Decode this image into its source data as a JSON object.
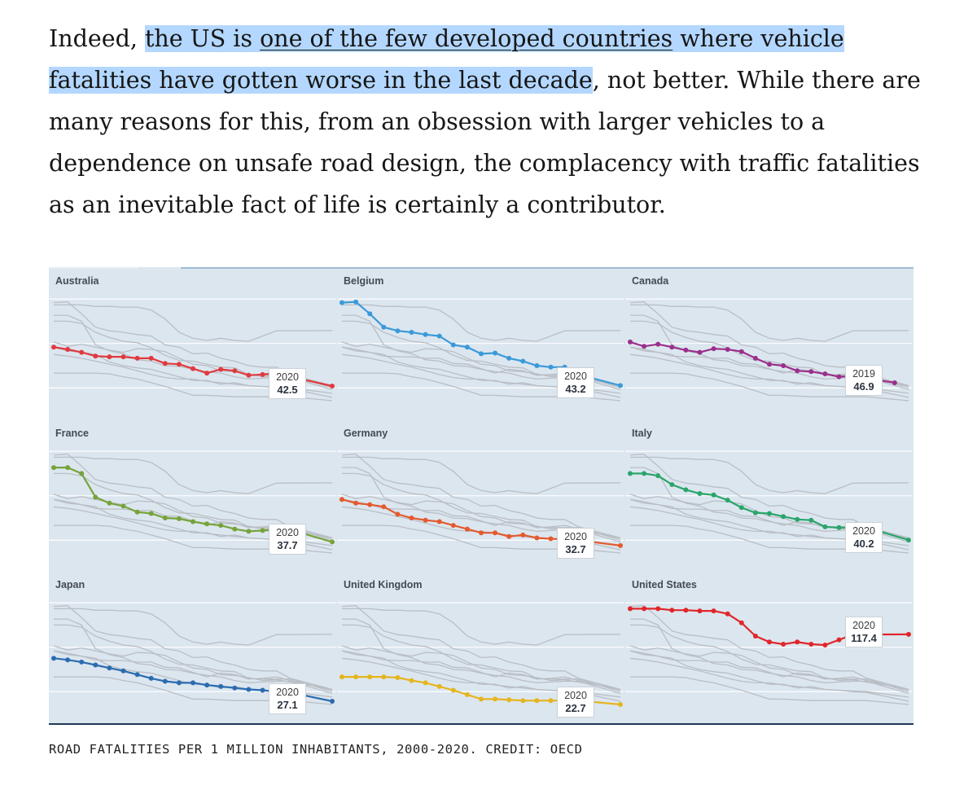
{
  "article": {
    "p1": "Indeed, ",
    "p2": "the US is ",
    "link": "one of the few developed countries",
    "p3": " where vehicle fatalities have gotten worse in the last decade",
    "p4": ", not better. While there are many reasons for this, from an obsession with larger vehicles to a dependence on unsafe road design, the complacency with traffic fatalities as an inevitable fact of life is certainly a contributor."
  },
  "caption": "ROAD FATALITIES PER 1 MILLION INHABITANTS, 2000-2020. CREDIT: OECD",
  "colors": {
    "australia": "#e03a3e",
    "belgium": "#3a9ad9",
    "canada": "#9b2f8c",
    "france": "#76a33a",
    "germany": "#e45a2e",
    "italy": "#2aa56b",
    "japan": "#2b6cb0",
    "united_kingdom": "#e5b51f",
    "united_states": "#e0262a",
    "context": "#b9bec4",
    "background": "#dce6ef",
    "grid": "#ffffff"
  },
  "chart_data": {
    "type": "line",
    "ylim": [
      0,
      170
    ],
    "grid": true,
    "x": [
      2000,
      2001,
      2002,
      2003,
      2004,
      2005,
      2006,
      2007,
      2008,
      2009,
      2010,
      2011,
      2012,
      2013,
      2014,
      2015,
      2016,
      2017,
      2018,
      2019,
      2020
    ],
    "panels": [
      {
        "name": "Australia",
        "color_key": "australia",
        "label_year": "2020",
        "label_value": "42.5",
        "values": [
          95,
          92,
          88,
          83,
          82,
          82,
          80,
          80,
          73,
          72,
          66,
          60,
          65,
          63,
          57,
          58,
          60,
          55,
          null,
          null,
          42.5
        ]
      },
      {
        "name": "Belgium",
        "color_key": "belgium",
        "label_year": "2020",
        "label_value": "43.2",
        "values": [
          155,
          156,
          140,
          122,
          117,
          115,
          112,
          110,
          98,
          95,
          86,
          87,
          80,
          76,
          70,
          68,
          68,
          58,
          null,
          null,
          43.2
        ]
      },
      {
        "name": "Canada",
        "color_key": "canada",
        "label_year": "2019",
        "label_value": "46.9",
        "values": [
          102,
          96,
          99,
          95,
          91,
          88,
          93,
          92,
          89,
          80,
          72,
          70,
          63,
          62,
          59,
          55,
          56,
          null,
          null,
          46.9,
          null
        ]
      },
      {
        "name": "France",
        "color_key": "france",
        "label_year": "2020",
        "label_value": "37.7",
        "values": [
          138,
          138,
          130,
          98,
          90,
          86,
          78,
          76,
          70,
          69,
          65,
          62,
          60,
          55,
          52,
          53,
          54,
          54,
          null,
          null,
          37.7
        ]
      },
      {
        "name": "Germany",
        "color_key": "germany",
        "label_year": "2020",
        "label_value": "32.7",
        "values": [
          95,
          90,
          88,
          85,
          75,
          70,
          67,
          65,
          60,
          55,
          50,
          50,
          45,
          47,
          43,
          42,
          41,
          40,
          null,
          null,
          32.7
        ]
      },
      {
        "name": "Italy",
        "color_key": "italy",
        "label_year": "2020",
        "label_value": "40.2",
        "values": [
          130,
          130,
          127,
          115,
          108,
          103,
          101,
          94,
          84,
          77,
          76,
          72,
          68,
          67,
          58,
          57,
          57,
          57,
          null,
          null,
          40.2
        ]
      },
      {
        "name": "Japan",
        "color_key": "japan",
        "label_year": "2020",
        "label_value": "27.1",
        "values": [
          85,
          83,
          80,
          76,
          72,
          68,
          63,
          58,
          54,
          52,
          52,
          49,
          47,
          45,
          43,
          42,
          40,
          39,
          null,
          null,
          27.1
        ]
      },
      {
        "name": "United Kingdom",
        "color_key": "united_kingdom",
        "label_year": "2020",
        "label_value": "22.7",
        "values": [
          60,
          60,
          60,
          60,
          59,
          55,
          52,
          47,
          42,
          36,
          30,
          30,
          29,
          28,
          28,
          28,
          28,
          28,
          null,
          null,
          22.7
        ]
      },
      {
        "name": "United States",
        "color_key": "united_states",
        "label_year": "2020",
        "label_value": "117.4",
        "values": [
          152,
          152,
          152,
          150,
          150,
          149,
          149,
          145,
          133,
          115,
          107,
          104,
          107,
          104,
          103,
          110,
          117,
          null,
          null,
          null,
          117.4
        ]
      }
    ]
  }
}
